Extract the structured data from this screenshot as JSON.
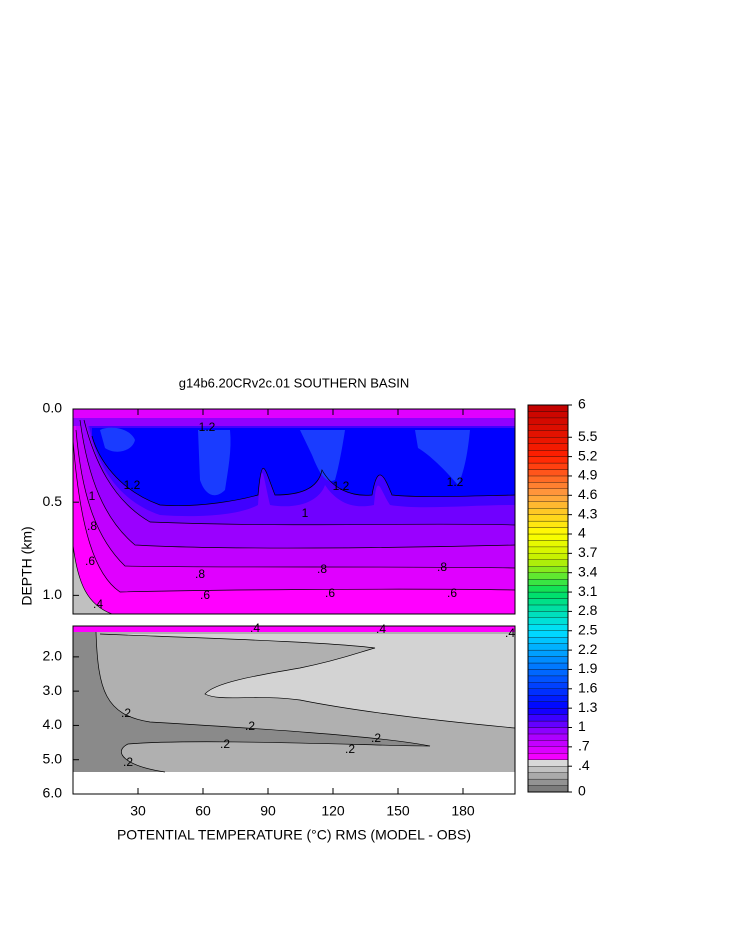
{
  "chart_data": {
    "type": "contour",
    "title": "g14b6.20CRv2c.01 SOUTHERN BASIN",
    "xlabel": "POTENTIAL TEMPERATURE (°C) RMS (MODEL - OBS)",
    "ylabel": "DEPTH (km)",
    "xlim": [
      0,
      204
    ],
    "xticks": [
      30,
      60,
      90,
      120,
      150,
      180
    ],
    "panels": [
      {
        "ylim": [
          0,
          1.1
        ],
        "yticks": [
          {
            "value": 0,
            "label": "0.0"
          },
          {
            "value": 0.5,
            "label": "0.5"
          },
          {
            "value": 1,
            "label": "1.0"
          }
        ]
      },
      {
        "ylim": [
          1.1,
          6
        ],
        "yticks": [
          {
            "value": 2,
            "label": "2.0"
          },
          {
            "value": 3,
            "label": "3.0"
          },
          {
            "value": 4,
            "label": "4.0"
          },
          {
            "value": 5,
            "label": "5.0"
          },
          {
            "value": 6,
            "label": "6.0"
          }
        ]
      }
    ],
    "colorbar": {
      "clim": [
        0,
        6
      ],
      "ticks": [
        6,
        5.5,
        5.2,
        4.9,
        4.6,
        4.3,
        4,
        3.7,
        3.4,
        3.1,
        2.8,
        2.5,
        2.2,
        1.9,
        1.6,
        1.3,
        1,
        {
          "value": 0.7,
          "label": ".7"
        },
        {
          "value": 0.4,
          "label": ".4"
        },
        0
      ],
      "color_stops": [
        {
          "value": 0,
          "color": "#707070"
        },
        {
          "value": 0.45,
          "color": "#d8d8d8"
        },
        {
          "value": 0.5,
          "color": "#ff00ff"
        },
        {
          "value": 0.9,
          "color": "#a000ff"
        },
        {
          "value": 1.3,
          "color": "#0000ff"
        },
        {
          "value": 2.5,
          "color": "#00e0ff"
        },
        {
          "value": 3.1,
          "color": "#00e060"
        },
        {
          "value": 3.6,
          "color": "#c0f000"
        },
        {
          "value": 4,
          "color": "#ffff00"
        },
        {
          "value": 4.6,
          "color": "#ffa040"
        },
        {
          "value": 5.2,
          "color": "#ff2000"
        },
        {
          "value": 6,
          "color": "#c00000"
        }
      ]
    },
    "contour_labels": [
      [
        "1.2",
        "1.2",
        "1.2",
        "1.2",
        "1",
        "1",
        ".8",
        ".8",
        ".8",
        ".8",
        ".6",
        ".6",
        ".6",
        ".6",
        ".4"
      ],
      [
        ".4",
        ".4",
        ".4",
        ".2",
        ".2",
        ".2",
        ".2",
        ".2",
        ".2"
      ]
    ]
  }
}
